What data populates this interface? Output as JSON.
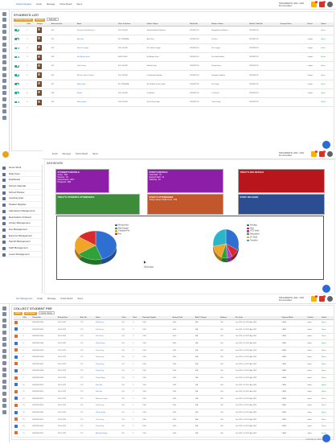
{
  "topbar": {
    "menu": [
      "Student Register",
      "Email",
      "Message",
      "Notice Board",
      "Name"
    ],
    "menu2": [
      "Email",
      "Message",
      "Notice Board",
      "Name"
    ],
    "menu3": [
      "Fee Management",
      "Email",
      "Message",
      "Notice Board",
      "Name"
    ],
    "inst_line1": "THE EUREKHA, 2023 - 2024",
    "inst_line2": "Pre-Accredited",
    "badges": [
      "2",
      "1"
    ]
  },
  "students": {
    "title": "STUDENTS LIST",
    "buttons": [
      "Students Admission",
      "Generate",
      "Bulk Edit"
    ],
    "columns": [
      "",
      "S.No",
      "Images",
      "Admission No",
      "Name",
      "Class & Section",
      "Father's Name",
      "Mobile No",
      "Mother's Name",
      "Mother's Mob No",
      "Transport Fees",
      "Hostel",
      "Status"
    ],
    "rows": [
      [
        "1",
        "001",
        "Nowyou Kekilat Aashiraa",
        "8 H FOLDER",
        "Sajeba Bhaktha Nithaman",
        "8876567700",
        "Bhagathbaran B Arena",
        "8876567700",
        "",
        "",
        "Active"
      ],
      [
        "2",
        "002",
        "Mei Khan",
        "8 H TRNSHRA",
        "Alex Khan",
        "8876567700",
        "Vi Khan",
        "8876567700",
        "",
        "Lodges",
        "Active"
      ],
      [
        "3",
        "003",
        "Nivid Kr Langpe",
        "8 H FOLDER",
        "Mr. Sunder Langpe",
        "8876567700",
        "Mrs Langpe",
        "8876567700",
        "",
        "Lodges",
        "Active"
      ],
      [
        "4",
        "004",
        "Shri Bikajee Kunti",
        "8 A FOLDER",
        "Sri Bikajee Kunti",
        "8876567700",
        "Mrs Sabihai Bikaj",
        "8876567700",
        "",
        "Lodges",
        "Active"
      ],
      [
        "5",
        "005",
        "Nafinu Kuzg",
        "8 H FOLDER",
        "Nirbakh Kuzg",
        "8876567700",
        "Nivajat Kuzg",
        "8876567700",
        "",
        "Lodges",
        "Active"
      ],
      [
        "6",
        "006",
        "Ekhtiara Vikram Salimar",
        "8 H FOLDER",
        "Gunabhakat Sadabar",
        "8876567700",
        "Khongbar Sadabar",
        "8876567700",
        "",
        "Lodges",
        "Active"
      ],
      [
        "7",
        "007",
        "Milan Jagati",
        "8 H TRNSHRA",
        "Mr. Mahibar Kumar Jagati",
        "8876567700",
        "Mrs Jagati",
        "8876567700",
        "",
        "Lodges",
        "Active"
      ],
      [
        "8",
        "008",
        "Biswas",
        "8 H FOLDER",
        "Fei Biswas",
        "8876567700",
        "Liz Biswas",
        "8876567700",
        "",
        "Lodges",
        "Active"
      ],
      [
        "9",
        "009",
        "Neeraj Singh",
        "8 H FOLDER",
        "Sanjiv Ram Singh",
        "8876567700",
        "Geeta Singh",
        "8876567700",
        "",
        "",
        "Active"
      ]
    ]
  },
  "sidebar": {
    "items": [
      "Home Work",
      "Daily Fees",
      "Dashboard",
      "School Calendar",
      "School Planner",
      "Learning Area",
      "Student Register",
      "Attendance Management",
      "Examination & Result",
      "Library Management",
      "Fee Management",
      "Expense Management",
      "Payroll Management",
      "Staff Management",
      "Leave Management"
    ]
  },
  "dashboard": {
    "title": "DASHBOARD",
    "cards": [
      {
        "title": "STUDENT'S DETAILS",
        "lines": [
          "Active : 853",
          "Passout : 46",
          "Discontinued : 2017",
          "Prospects : 896"
        ],
        "color": "#8d1ea8"
      },
      {
        "title": "STAFF'S DETAILS",
        "lines": [
          "Total Staff : 76",
          "Support Staff : 13",
          "Teaching : 63"
        ],
        "color": "#8d1ea8"
      },
      {
        "title": "TODAY'S FEE DETAILS",
        "lines": [],
        "color": "#b8161c"
      },
      {
        "title": "TODAY'S STUDENTS ATTENDANCE",
        "lines": [],
        "color": "#3c8c39"
      },
      {
        "title": "STAFF'S ATTENDANCE",
        "lines": [
          "Today's Absent Staff Count : 189"
        ],
        "color": "#c2572b"
      },
      {
        "title": "STAFF ON LEAVE",
        "lines": [],
        "color": "#2c4d8f"
      }
    ],
    "cursor_label": "Marian"
  },
  "chart_data": [
    {
      "type": "pie",
      "categories": [
        "Present Mun",
        "Paid Unpaid",
        "Transport Fee",
        "Fee"
      ],
      "values": [
        45,
        20,
        20,
        15
      ],
      "colors": [
        "#2f6fd1",
        "#2fa33a",
        "#f0a52a",
        "#d62b2b"
      ]
    },
    {
      "type": "pie",
      "categories": [
        "Pending",
        "Paid",
        "OTO Verify",
        "Absconded",
        "CO Stuts",
        "Transfers"
      ],
      "values": [
        32,
        10,
        6,
        8,
        16,
        28
      ],
      "colors": [
        "#2f6fd1",
        "#d62b2b",
        "#b83ad0",
        "#2fa33a",
        "#f0a52a",
        "#2bb5c9"
      ]
    }
  ],
  "fees": {
    "title": "COLLECT STUDENT FEE",
    "buttons": [
      "Collect",
      "Print Report",
      "Import / Excel"
    ],
    "columns": [
      "",
      "S.No",
      "Receipt No",
      "Receipt Date",
      "Adm. No",
      "Name",
      "Class",
      "Total",
      "Discount Payable",
      "Amount Paid",
      "Bank / Cheque",
      "Balance",
      "Fee Cycle",
      "Payment Mode",
      "Cashier",
      "Status"
    ],
    "rows": [
      [
        "1",
        "FEE/2023/2001",
        "20-07-2023",
        "1.75",
        "Edit Khona",
        "8 B",
        "2",
        "1500",
        "1000",
        "N/A",
        "500",
        "Jun 2023, Jul 2023, Aug 2023",
        "CASH",
        "admin",
        "Active"
      ],
      [
        "2",
        "FEE/2023/2002",
        "20-07-2023",
        "1.75",
        "Edit Khona",
        "8 B",
        "2",
        "1500",
        "1000",
        "N/A",
        "500",
        "Jun 2023, Jul 2023, Aug 2023",
        "CASH",
        "admin",
        "Active"
      ],
      [
        "3",
        "FEE/2023/2003",
        "20-07-2023",
        "1.75",
        "Wasi Khan",
        "8 B",
        "2",
        "1500",
        "1000",
        "N/A",
        "500",
        "Jun 2023, Jul 2023, Aug 2023",
        "CASH",
        "admin",
        "Active"
      ],
      [
        "4",
        "FEE/2023/2004",
        "20-07-2023",
        "1.75",
        "Nitish Kumar",
        "8 B",
        "2",
        "1500",
        "1000",
        "N/A",
        "500",
        "Jun 2023, Jul 2023, Aug 2023",
        "CASH",
        "admin",
        "Active"
      ],
      [
        "5",
        "FEE/2023/2005",
        "20-07-2023",
        "1.75",
        "Nanu Kuzg",
        "8 B",
        "2",
        "1500",
        "1000",
        "N/A",
        "500",
        "Jun 2023, Jul 2023, Aug 2023",
        "CASH",
        "admin",
        "Active"
      ],
      [
        "6",
        "FEE/2023/2006",
        "20-07-2023",
        "1.75",
        "Nanu Kuzg",
        "8 H",
        "2",
        "1500",
        "1000",
        "N/A",
        "500",
        "Jun 2023, Jul 2023, Aug 2023",
        "CASH",
        "admin",
        "Active"
      ],
      [
        "7",
        "FEE/2023/2007",
        "20-07-2023",
        "1.75",
        "Nanu Kuzg",
        "8 H",
        "2",
        "1500",
        "1000",
        "N/A",
        "500",
        "Jun 2023, Jul 2023, Aug 2023",
        "CASH",
        "admin",
        "Active"
      ],
      [
        "8",
        "FEE/2023/2008",
        "20-07-2023",
        "1.75",
        "Nanu Kuzg",
        "8 H",
        "2",
        "1500",
        "1000",
        "N/A",
        "500",
        "Jun 2023, Jul 2023, Aug 2023",
        "CASH",
        "admin",
        "Active"
      ],
      [
        "9",
        "FEE/2023/2009",
        "20-07-2023",
        "1.75",
        "Neeraj Singh",
        "8 H",
        "2",
        "1500",
        "1000",
        "N/A",
        "500",
        "Jun 2023, Jul 2023, Aug 2023",
        "CASH",
        "admin",
        "Active"
      ],
      [
        "10",
        "FEE/2023/2010",
        "20-07-2023",
        "1.75",
        "Mari Kha",
        "8 H",
        "2",
        "1500",
        "1000",
        "N/A",
        "500",
        "Jun 2023, Jul 2023, Aug 2023",
        "CASH",
        "admin",
        "Active"
      ],
      [
        "11",
        "FEE/2023/2011",
        "20-07-2023",
        "1.75",
        "Mari Kha",
        "8 B",
        "2",
        "1500",
        "1000",
        "N/A",
        "500",
        "Jun 2023, Jul 2023, Aug 2023",
        "CASH",
        "admin",
        "Active"
      ],
      [
        "12",
        "FEE/2023/2012",
        "20-07-2023",
        "1.75",
        "Ashimara Tapita",
        "8 B",
        "2",
        "1500",
        "1000",
        "N/A",
        "500",
        "Jun 2023, Jul 2023, Aug 2023",
        "CASH",
        "admin",
        "Active"
      ],
      [
        "13",
        "FEE/2023/2013",
        "20-07-2023",
        "1.75",
        "Nanu Kuzg",
        "8 B",
        "2",
        "1500",
        "1000",
        "N/A",
        "500",
        "Jun 2023, Jul 2023, Aug 2023",
        "CASH",
        "admin",
        "Active"
      ],
      [
        "14",
        "FEE/2023/2014",
        "20-07-2023",
        "1.75",
        "Wasim Sahid",
        "8 B",
        "2",
        "1500",
        "1000",
        "N/A",
        "500",
        "Jun 2023, Jul 2023, Aug 2023",
        "CASH",
        "admin",
        "Active"
      ],
      [
        "15",
        "FEE/2023/2015",
        "20-07-2023",
        "1.75",
        "Nanu Kuzg",
        "8 B",
        "2",
        "1500",
        "1000",
        "N/A",
        "500",
        "Jun 2023, Jul 2023, Aug 2023",
        "CASH",
        "admin",
        "Active"
      ],
      [
        "16",
        "FEE/2023/2016",
        "20-07-2023",
        "1.75",
        "Nanu Kuzg",
        "8 B",
        "2",
        "1500",
        "1000",
        "N/A",
        "500",
        "Jun 2023, Jul 2023, Aug 2023",
        "CASH",
        "admin",
        "Active"
      ],
      [
        "17",
        "FEE/2023/2017",
        "20-07-2023",
        "1.75",
        "Abhishek Singh",
        "8 B",
        "2",
        "1500",
        "1000",
        "N/A",
        "500",
        "Jun 2023, Jul 2023, Aug 2023",
        "CASH",
        "admin",
        "Active"
      ]
    ]
  },
  "footer": "© EduApp Inc 2023"
}
